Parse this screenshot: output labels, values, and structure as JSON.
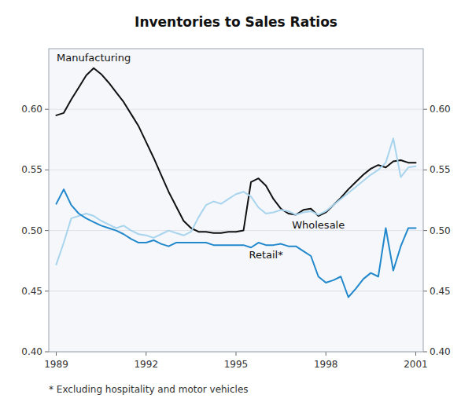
{
  "chart_data": {
    "type": "line",
    "title": "Inventories to Sales Ratios",
    "footnote": "*   Excluding hospitality and motor vehicles",
    "x": [
      1989.0,
      1989.25,
      1989.5,
      1989.75,
      1990.0,
      1990.25,
      1990.5,
      1990.75,
      1991.0,
      1991.25,
      1991.5,
      1991.75,
      1992.0,
      1992.25,
      1992.5,
      1992.75,
      1993.0,
      1993.25,
      1993.5,
      1993.75,
      1994.0,
      1994.25,
      1994.5,
      1994.75,
      1995.0,
      1995.25,
      1995.5,
      1995.75,
      1996.0,
      1996.25,
      1996.5,
      1996.75,
      1997.0,
      1997.25,
      1997.5,
      1997.75,
      1998.0,
      1998.25,
      1998.5,
      1998.75,
      1999.0,
      1999.25,
      1999.5,
      1999.75,
      2000.0,
      2000.25,
      2000.5,
      2000.75,
      2001.0
    ],
    "series": [
      {
        "name": "Manufacturing",
        "color": "#111111",
        "values": [
          0.595,
          0.597,
          0.608,
          0.618,
          0.628,
          0.634,
          0.629,
          0.622,
          0.614,
          0.606,
          0.596,
          0.586,
          0.573,
          0.56,
          0.546,
          0.532,
          0.52,
          0.508,
          0.502,
          0.499,
          0.499,
          0.498,
          0.498,
          0.499,
          0.499,
          0.5,
          0.54,
          0.543,
          0.537,
          0.526,
          0.518,
          0.514,
          0.513,
          0.517,
          0.518,
          0.512,
          0.515,
          0.521,
          0.527,
          0.534,
          0.54,
          0.546,
          0.551,
          0.554,
          0.552,
          0.557,
          0.558,
          0.556,
          0.556
        ]
      },
      {
        "name": "Wholesale",
        "color": "#a8d4ee",
        "values": [
          0.472,
          0.49,
          0.51,
          0.512,
          0.514,
          0.512,
          0.508,
          0.505,
          0.502,
          0.504,
          0.5,
          0.497,
          0.496,
          0.494,
          0.497,
          0.5,
          0.498,
          0.496,
          0.499,
          0.511,
          0.521,
          0.524,
          0.522,
          0.526,
          0.53,
          0.532,
          0.528,
          0.519,
          0.514,
          0.515,
          0.517,
          0.516,
          0.513,
          0.515,
          0.516,
          0.513,
          0.516,
          0.521,
          0.526,
          0.531,
          0.536,
          0.541,
          0.546,
          0.55,
          0.556,
          0.576,
          0.544,
          0.552,
          0.553
        ]
      },
      {
        "name": "Retail*",
        "color": "#2288cc",
        "values": [
          0.522,
          0.534,
          0.521,
          0.514,
          0.51,
          0.507,
          0.504,
          0.502,
          0.5,
          0.497,
          0.493,
          0.49,
          0.49,
          0.492,
          0.489,
          0.487,
          0.49,
          0.49,
          0.49,
          0.49,
          0.49,
          0.488,
          0.488,
          0.488,
          0.488,
          0.488,
          0.486,
          0.49,
          0.488,
          0.488,
          0.489,
          0.487,
          0.487,
          0.483,
          0.479,
          0.462,
          0.457,
          0.459,
          0.462,
          0.445,
          0.452,
          0.46,
          0.465,
          0.462,
          0.502,
          0.467,
          0.487,
          0.502,
          0.502
        ]
      }
    ],
    "xlim": [
      1988.75,
      2001.25
    ],
    "xticks": [
      1989,
      1992,
      1995,
      1998,
      2001
    ],
    "ylim": [
      0.4,
      0.65
    ],
    "yticks": [
      {
        "value": 0.4,
        "label": "0.40"
      },
      0.45,
      {
        "value": 0.5,
        "label": "0.50"
      },
      0.55,
      {
        "value": 0.6,
        "label": "0.60"
      }
    ],
    "y2lim": [
      0.4,
      0.65
    ],
    "y2ticks": [
      {
        "value": 0.4,
        "label": "0.40"
      },
      0.45,
      {
        "value": 0.5,
        "label": "0.50"
      },
      0.55,
      {
        "value": 0.6,
        "label": "0.60"
      }
    ],
    "grid": true
  }
}
